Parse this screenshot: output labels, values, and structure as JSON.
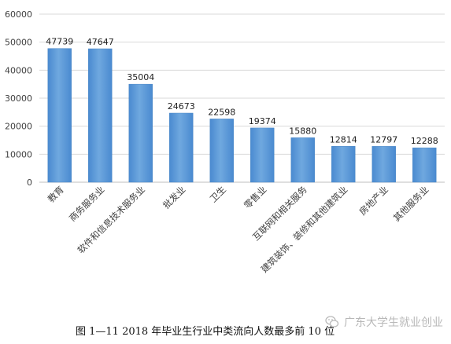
{
  "chart_data": {
    "type": "bar",
    "categories": [
      "教育",
      "商务服务业",
      "软件和信息技术服务业",
      "批发业",
      "卫生",
      "零售业",
      "互联网和相关服务",
      "建筑装饰、装修和其他建筑业",
      "房地产业",
      "其他服务业"
    ],
    "values": [
      47739,
      47647,
      35004,
      24673,
      22598,
      19374,
      15880,
      12814,
      12797,
      12288
    ],
    "data_labels": [
      "47739",
      "47647",
      "35004",
      "24673",
      "22598",
      "19374",
      "15880",
      "12814",
      "12797",
      "12288"
    ],
    "ylim": [
      0,
      60000
    ],
    "yticks": [
      0,
      10000,
      20000,
      30000,
      40000,
      50000,
      60000
    ],
    "ytick_labels": [
      "0",
      "10000",
      "20000",
      "30000",
      "40000",
      "50000",
      "60000"
    ],
    "grid": true,
    "bar_color": "#5b9bd5",
    "grid_color": "#d9d9d9"
  },
  "caption": "图 1—11   2018 年毕业生行业中类流向人数最多前 10 位",
  "watermark": {
    "text": "广东大学生就业创业",
    "icon": "wechat-icon"
  }
}
